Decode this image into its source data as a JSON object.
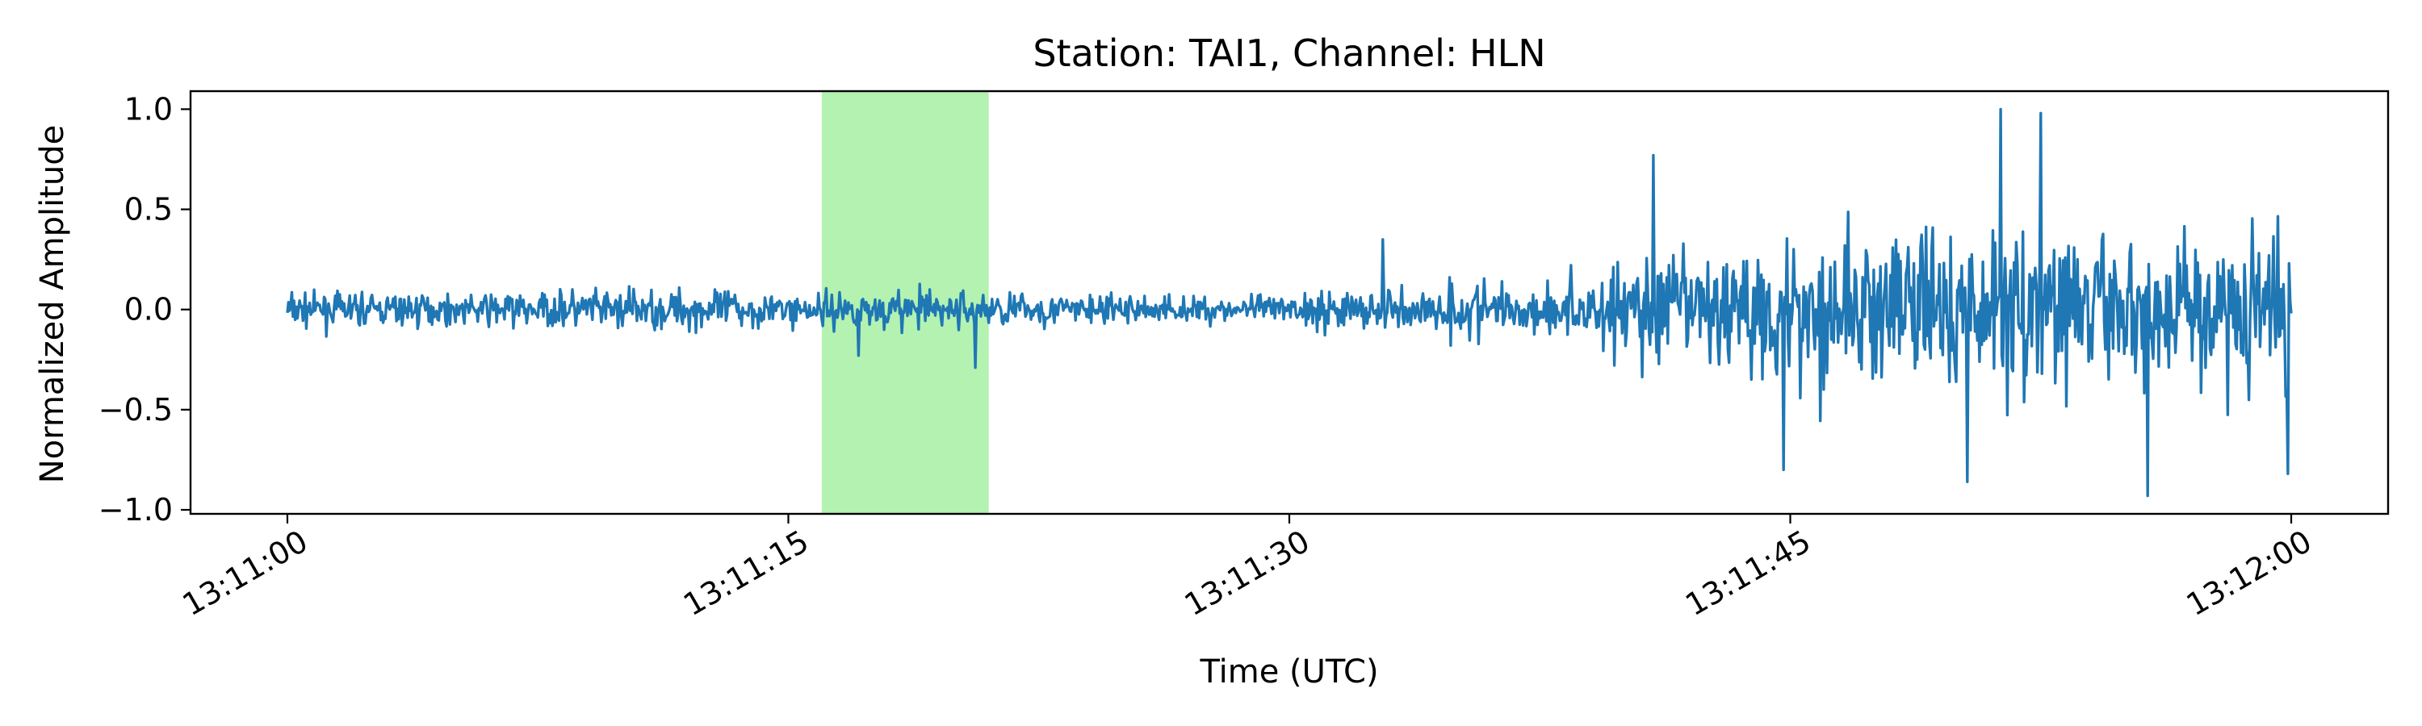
{
  "chart_data": {
    "type": "line",
    "title": "Station: TAI1, Channel: HLN",
    "xlabel": "Time (UTC)",
    "ylabel": "Normalized Amplitude",
    "x_unit": "seconds after 13:11:00",
    "xlim": [
      -2.9,
      62.9
    ],
    "ylim": [
      -1.02,
      1.09
    ],
    "x_ticks": [
      {
        "value": 0,
        "label": "13:11:00"
      },
      {
        "value": 15,
        "label": "13:11:15"
      },
      {
        "value": 30,
        "label": "13:11:30"
      },
      {
        "value": 45,
        "label": "13:11:45"
      },
      {
        "value": 60,
        "label": "13:12:00"
      }
    ],
    "y_ticks": [
      {
        "value": 1.0,
        "label": "1.0"
      },
      {
        "value": 0.5,
        "label": "0.5"
      },
      {
        "value": 0.0,
        "label": "0.0"
      },
      {
        "value": -0.5,
        "label": "−0.5"
      },
      {
        "value": -1.0,
        "label": "−1.0"
      }
    ],
    "highlight_window": {
      "start": 16.0,
      "end": 21.0,
      "color": "#b3f2b0"
    },
    "series": [
      {
        "name": "HLN",
        "color": "#1f77b4",
        "envelope": [
          {
            "x": 0,
            "amp": 0.13
          },
          {
            "x": 5,
            "amp": 0.14
          },
          {
            "x": 10,
            "amp": 0.17
          },
          {
            "x": 15,
            "amp": 0.15
          },
          {
            "x": 20,
            "amp": 0.16
          },
          {
            "x": 25,
            "amp": 0.12
          },
          {
            "x": 30,
            "amp": 0.13
          },
          {
            "x": 35,
            "amp": 0.24
          },
          {
            "x": 38,
            "amp": 0.22
          },
          {
            "x": 40,
            "amp": 0.45
          },
          {
            "x": 45,
            "amp": 0.62
          },
          {
            "x": 50,
            "amp": 0.72
          },
          {
            "x": 55,
            "amp": 0.66
          },
          {
            "x": 60,
            "amp": 0.62
          }
        ],
        "extremes": [
          {
            "x": 51.3,
            "y": 1.0
          },
          {
            "x": 52.5,
            "y": 0.98
          },
          {
            "x": 55.7,
            "y": -0.93
          },
          {
            "x": 50.3,
            "y": -0.86
          },
          {
            "x": 44.8,
            "y": -0.8
          },
          {
            "x": 40.9,
            "y": 0.77
          },
          {
            "x": 59.9,
            "y": -0.82
          },
          {
            "x": 20.6,
            "y": -0.29
          },
          {
            "x": 32.8,
            "y": 0.35
          },
          {
            "x": 17.1,
            "y": -0.23
          }
        ]
      }
    ]
  }
}
